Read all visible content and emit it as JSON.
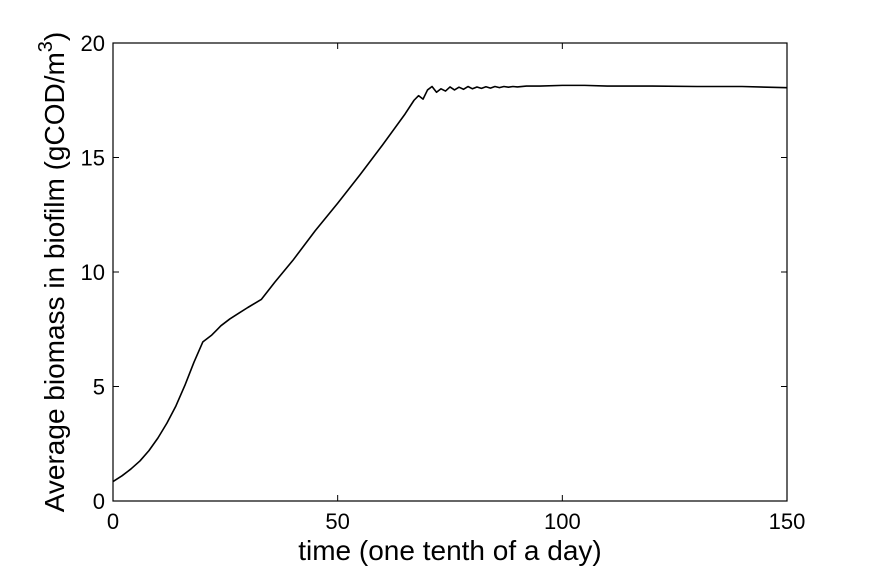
{
  "chart_data": {
    "type": "line",
    "title": "",
    "xlabel": "time (one tenth of a day)",
    "ylabel_main": "Average biomass in biofilm (gCOD/m",
    "ylabel_sup": "3",
    "ylabel_tail": ")",
    "xlim": [
      0,
      150
    ],
    "ylim": [
      0,
      20
    ],
    "xticks": [
      0,
      50,
      100,
      150
    ],
    "yticks": [
      0,
      5,
      10,
      15,
      20
    ],
    "grid": false,
    "line_color": "#000000",
    "series": [
      {
        "x": [
          0,
          2,
          4,
          6,
          8,
          10,
          12,
          14,
          16,
          18,
          20,
          22,
          23,
          24,
          26,
          28,
          30,
          33,
          36,
          40,
          45,
          50,
          55,
          60,
          65,
          67,
          68,
          69,
          70,
          71,
          72,
          73,
          74,
          75,
          76,
          77,
          78,
          79,
          80,
          81,
          82,
          83,
          84,
          85,
          86,
          87,
          88,
          89,
          90,
          92,
          95,
          100,
          105,
          110,
          120,
          130,
          140,
          150
        ],
        "y": [
          0.85,
          1.1,
          1.4,
          1.75,
          2.2,
          2.75,
          3.4,
          4.15,
          5.05,
          6.05,
          6.95,
          7.25,
          7.45,
          7.65,
          7.95,
          8.2,
          8.45,
          8.8,
          9.55,
          10.5,
          11.8,
          13.0,
          14.25,
          15.55,
          16.9,
          17.5,
          17.7,
          17.55,
          17.95,
          18.1,
          17.85,
          18.0,
          17.9,
          18.08,
          17.95,
          18.07,
          17.98,
          18.1,
          18.0,
          18.08,
          18.02,
          18.09,
          18.03,
          18.1,
          18.05,
          18.1,
          18.07,
          18.1,
          18.08,
          18.12,
          18.12,
          18.15,
          18.15,
          18.12,
          18.12,
          18.1,
          18.1,
          18.05
        ]
      }
    ]
  }
}
